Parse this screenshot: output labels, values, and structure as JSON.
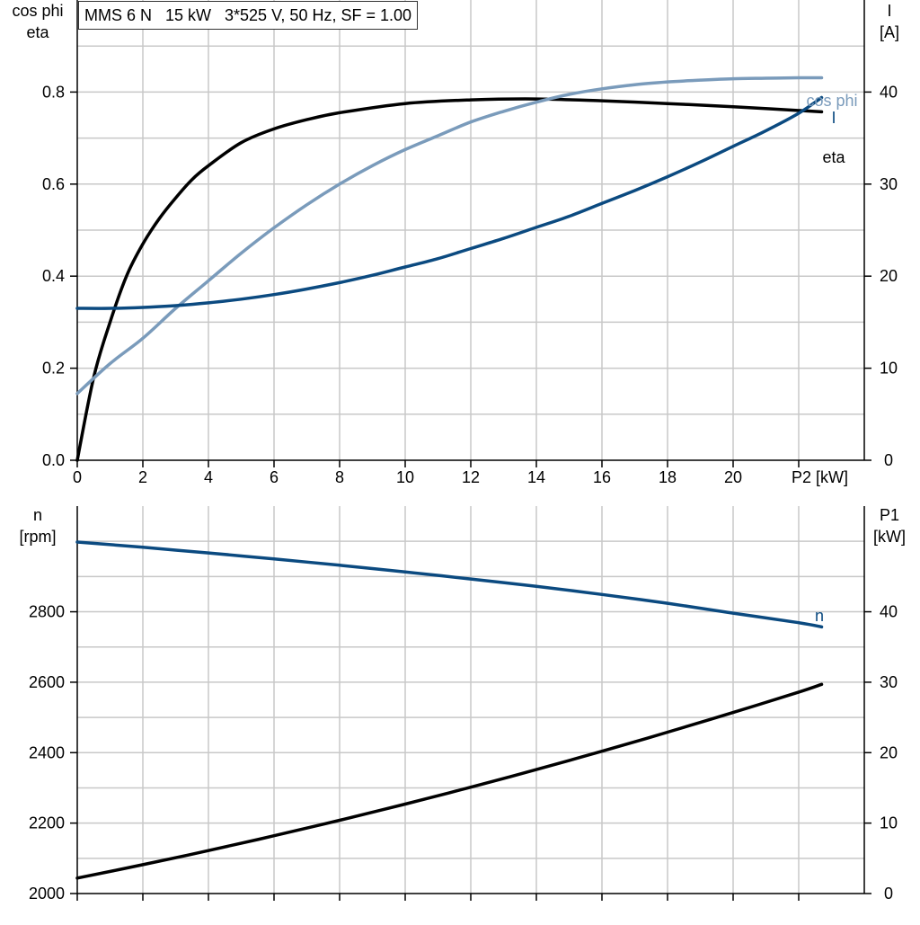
{
  "caption": "MMS 6 N   15 kW   3*525 V, 50 Hz, SF = 1.00",
  "colors": {
    "eta": "#000000",
    "cos_phi": "#7a9bbb",
    "current": "#0b4a80",
    "speed": "#0b4a80",
    "p1": "#000000",
    "grid": "#c8c8c8",
    "axis": "#000000"
  },
  "chart_data": [
    {
      "type": "line",
      "panel": "top",
      "x_ticks": [
        "0",
        "2",
        "4",
        "6",
        "8",
        "10",
        "12",
        "14",
        "16",
        "18",
        "20",
        "P2 [kW]"
      ],
      "xlim": [
        0,
        24
      ],
      "left_axis": {
        "title": [
          "cos phi",
          "eta"
        ],
        "ylim": [
          0,
          1.0
        ],
        "ticks": [
          "0.0",
          "0.2",
          "0.4",
          "0.6",
          "0.8"
        ]
      },
      "right_axis": {
        "title": [
          "I",
          "[A]"
        ],
        "ylim": [
          0,
          50
        ],
        "ticks": [
          "0",
          "10",
          "20",
          "30",
          "40"
        ]
      },
      "grid": true,
      "series": [
        {
          "name": "eta",
          "axis": "left",
          "color_key": "eta",
          "x": [
            0,
            0.5,
            1,
            1.5,
            2,
            2.5,
            3,
            3.5,
            4,
            5,
            6,
            7,
            8,
            10,
            12,
            14,
            16,
            18,
            20,
            22.7
          ],
          "y": [
            0,
            0.18,
            0.3,
            0.4,
            0.47,
            0.525,
            0.57,
            0.61,
            0.64,
            0.69,
            0.72,
            0.74,
            0.755,
            0.775,
            0.783,
            0.785,
            0.781,
            0.775,
            0.768,
            0.757
          ]
        },
        {
          "name": "cos phi",
          "axis": "left",
          "color_key": "cos_phi",
          "x": [
            0,
            1,
            2,
            3,
            4,
            5,
            6,
            7,
            8,
            9,
            10,
            11,
            12,
            13,
            14,
            15,
            16,
            17,
            18,
            19,
            20,
            21,
            22,
            22.7
          ],
          "y": [
            0.145,
            0.21,
            0.265,
            0.33,
            0.39,
            0.45,
            0.505,
            0.555,
            0.6,
            0.64,
            0.675,
            0.705,
            0.735,
            0.758,
            0.778,
            0.795,
            0.807,
            0.816,
            0.822,
            0.826,
            0.829,
            0.83,
            0.831,
            0.831
          ]
        },
        {
          "name": "I",
          "axis": "right",
          "color_key": "current",
          "x": [
            0,
            1,
            2,
            3,
            4,
            5,
            6,
            7,
            8,
            9,
            10,
            11,
            12,
            13,
            14,
            15,
            16,
            17,
            18,
            19,
            20,
            21,
            22,
            22.7
          ],
          "y": [
            16.5,
            16.5,
            16.6,
            16.8,
            17.1,
            17.5,
            18.0,
            18.6,
            19.3,
            20.1,
            21.0,
            21.9,
            23.0,
            24.1,
            25.3,
            26.5,
            27.9,
            29.3,
            30.8,
            32.4,
            34.1,
            35.8,
            37.7,
            39.4
          ]
        }
      ]
    },
    {
      "type": "line",
      "panel": "bottom",
      "xlim": [
        0,
        24
      ],
      "left_axis": {
        "title": [
          "n",
          "[rpm]"
        ],
        "ylim": [
          2000,
          3100
        ],
        "ticks": [
          "2000",
          "2200",
          "2400",
          "2600",
          "2800"
        ]
      },
      "right_axis": {
        "title": [
          "P1",
          "[kW]"
        ],
        "ylim": [
          0,
          55
        ],
        "ticks": [
          "0",
          "10",
          "20",
          "30",
          "40"
        ]
      },
      "grid": true,
      "series": [
        {
          "name": "n",
          "axis": "left",
          "color_key": "speed",
          "x": [
            0,
            2,
            4,
            6,
            8,
            10,
            12,
            14,
            16,
            18,
            20,
            22,
            22.7
          ],
          "y": [
            2998,
            2983,
            2967,
            2950,
            2932,
            2913,
            2893,
            2872,
            2849,
            2824,
            2796,
            2769,
            2757
          ]
        },
        {
          "name": "",
          "axis": "right",
          "color_key": "p1",
          "x": [
            0,
            2,
            4,
            6,
            8,
            10,
            12,
            14,
            16,
            18,
            20,
            22,
            22.7
          ],
          "y": [
            2.2,
            4.1,
            6.1,
            8.2,
            10.4,
            12.7,
            15.1,
            17.6,
            20.2,
            22.9,
            25.7,
            28.6,
            29.7
          ]
        }
      ]
    }
  ],
  "curve_labels": {
    "eta": "eta",
    "cos_phi": "cos phi",
    "current": "I",
    "speed": "n"
  }
}
